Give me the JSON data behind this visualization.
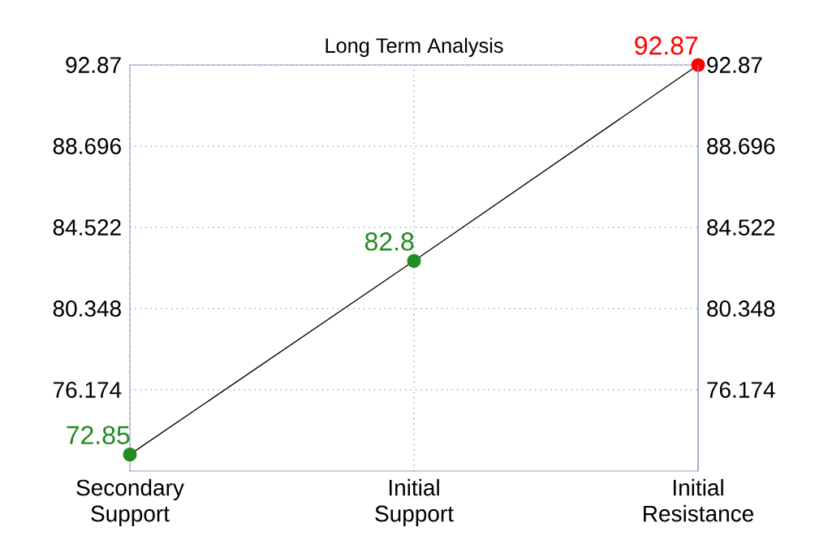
{
  "chart_data": {
    "type": "line",
    "title": "Long Term Analysis",
    "categories": [
      "Secondary Support",
      "Initial Support",
      "Initial Resistance"
    ],
    "series": [
      {
        "color": "#000000",
        "colors": [
          "#228b22",
          "#228b22",
          "#ff0000"
        ],
        "values": [
          72.85,
          82.8,
          92.87
        ]
      }
    ],
    "ylim": [
      72,
      92.87
    ],
    "yticks": [
      76.174,
      80.348,
      84.522,
      88.696,
      92.87
    ],
    "y2lim": [
      72,
      92.87
    ],
    "y2ticks": [
      76.174,
      80.348,
      84.522,
      88.696,
      92.87
    ],
    "grid": true,
    "marker": "circle",
    "line_style": "solid",
    "data_labels": true
  }
}
